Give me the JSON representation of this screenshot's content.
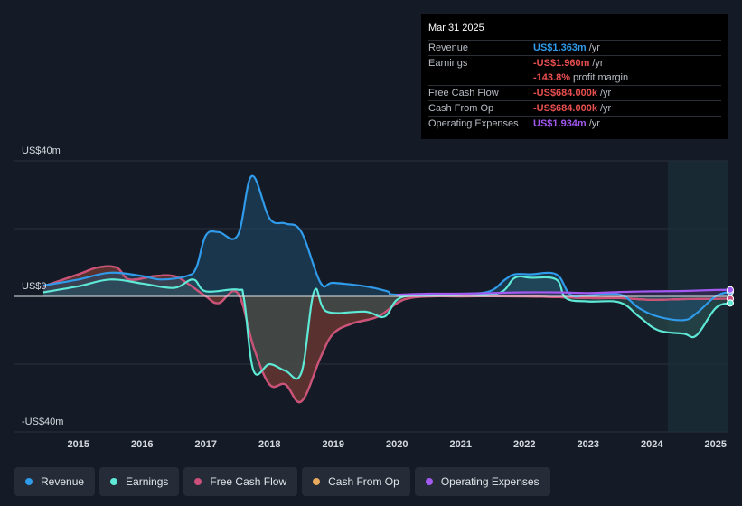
{
  "tooltip": {
    "date": "Mar 31 2025",
    "rows": [
      {
        "label": "Revenue",
        "value": "US$1.363m",
        "unit": "/yr",
        "color": "#2f9bea"
      },
      {
        "label": "Earnings",
        "value": "-US$1.960m",
        "unit": "/yr",
        "color": "#e84f4f"
      },
      {
        "label": "",
        "value": "-143.8%",
        "unit": "profit margin",
        "color": "#e84f4f"
      },
      {
        "label": "Free Cash Flow",
        "value": "-US$684.000k",
        "unit": "/yr",
        "color": "#e84f4f"
      },
      {
        "label": "Cash From Op",
        "value": "-US$684.000k",
        "unit": "/yr",
        "color": "#e84f4f"
      },
      {
        "label": "Operating Expenses",
        "value": "US$1.934m",
        "unit": "/yr",
        "color": "#a259f0"
      }
    ]
  },
  "legend": [
    {
      "label": "Revenue",
      "color": "#2f9bea"
    },
    {
      "label": "Earnings",
      "color": "#5ee8d6"
    },
    {
      "label": "Free Cash Flow",
      "color": "#cc4f7c"
    },
    {
      "label": "Cash From Op",
      "color": "#eaaa5e"
    },
    {
      "label": "Operating Expenses",
      "color": "#a259f0"
    }
  ],
  "chart_data": {
    "type": "area",
    "y_tick_labels": {
      "top": "US$40m",
      "zero": "US$0",
      "bottom": "-US$40m"
    },
    "ylim": [
      -40,
      40
    ],
    "x_ticks": [
      "2015",
      "2016",
      "2017",
      "2018",
      "2019",
      "2020",
      "2021",
      "2022",
      "2023",
      "2024",
      "2025"
    ],
    "xlim": [
      2014.45,
      2025.23
    ],
    "forecast_shade_start": 2024.25,
    "grid": true,
    "series": [
      {
        "name": "Revenue",
        "color": "#2f9bea",
        "fill": "#1f4c6e",
        "points": [
          [
            2014.45,
            3.2
          ],
          [
            2015.0,
            5.0
          ],
          [
            2015.5,
            7.0
          ],
          [
            2016.0,
            6.0
          ],
          [
            2016.3,
            5.0
          ],
          [
            2016.7,
            6.0
          ],
          [
            2016.85,
            8.5
          ],
          [
            2017.0,
            18.0
          ],
          [
            2017.2,
            19.0
          ],
          [
            2017.5,
            18.0
          ],
          [
            2017.72,
            35.5
          ],
          [
            2018.0,
            23.0
          ],
          [
            2018.25,
            21.5
          ],
          [
            2018.5,
            19.0
          ],
          [
            2018.8,
            4.0
          ],
          [
            2019.0,
            4.0
          ],
          [
            2019.5,
            3.0
          ],
          [
            2019.85,
            1.5
          ],
          [
            2020.0,
            0.5
          ],
          [
            2021.0,
            0.8
          ],
          [
            2021.45,
            1.5
          ],
          [
            2021.7,
            5.0
          ],
          [
            2021.85,
            6.5
          ],
          [
            2022.1,
            6.5
          ],
          [
            2022.5,
            6.5
          ],
          [
            2022.72,
            0.5
          ],
          [
            2023.0,
            0.3
          ],
          [
            2023.5,
            0.5
          ],
          [
            2023.8,
            -3.5
          ],
          [
            2024.1,
            -6.0
          ],
          [
            2024.5,
            -7.0
          ],
          [
            2024.7,
            -5.0
          ],
          [
            2025.0,
            0.0
          ],
          [
            2025.23,
            1.363
          ]
        ]
      },
      {
        "name": "Earnings",
        "color": "#5ee8d6",
        "fill": "#2e5553",
        "points": [
          [
            2014.45,
            1.2
          ],
          [
            2015.0,
            3.0
          ],
          [
            2015.5,
            5.0
          ],
          [
            2016.0,
            3.8
          ],
          [
            2016.5,
            2.5
          ],
          [
            2016.8,
            5.0
          ],
          [
            2017.0,
            1.5
          ],
          [
            2017.5,
            2.0
          ],
          [
            2017.6,
            -1.0
          ],
          [
            2017.75,
            -22.0
          ],
          [
            2018.0,
            -20.0
          ],
          [
            2018.25,
            -22.0
          ],
          [
            2018.5,
            -22.5
          ],
          [
            2018.7,
            1.5
          ],
          [
            2018.9,
            -4.5
          ],
          [
            2019.5,
            -4.5
          ],
          [
            2019.8,
            -6.0
          ],
          [
            2020.0,
            -1.0
          ],
          [
            2020.3,
            0.3
          ],
          [
            2021.0,
            0.5
          ],
          [
            2021.6,
            1.0
          ],
          [
            2021.85,
            5.5
          ],
          [
            2022.1,
            5.5
          ],
          [
            2022.5,
            5.0
          ],
          [
            2022.65,
            -0.5
          ],
          [
            2023.0,
            -1.5
          ],
          [
            2023.5,
            -1.8
          ],
          [
            2023.8,
            -6.0
          ],
          [
            2024.1,
            -10.0
          ],
          [
            2024.5,
            -11.0
          ],
          [
            2024.7,
            -11.5
          ],
          [
            2025.0,
            -3.5
          ],
          [
            2025.23,
            -1.96
          ]
        ]
      },
      {
        "name": "Free Cash Flow",
        "color": "#cc4f7c",
        "fill": "#6b2a33",
        "points": [
          [
            2014.45,
            3.0
          ],
          [
            2015.0,
            6.5
          ],
          [
            2015.3,
            8.5
          ],
          [
            2015.6,
            8.5
          ],
          [
            2015.8,
            5.0
          ],
          [
            2016.2,
            6.0
          ],
          [
            2016.5,
            6.0
          ],
          [
            2016.7,
            4.0
          ],
          [
            2017.0,
            0.0
          ],
          [
            2017.2,
            -2.0
          ],
          [
            2017.5,
            1.0
          ],
          [
            2017.75,
            -15.0
          ],
          [
            2018.0,
            -26.0
          ],
          [
            2018.25,
            -26.0
          ],
          [
            2018.5,
            -31.0
          ],
          [
            2018.8,
            -18.0
          ],
          [
            2019.0,
            -11.0
          ],
          [
            2019.3,
            -8.0
          ],
          [
            2019.7,
            -6.0
          ],
          [
            2020.0,
            -2.0
          ],
          [
            2020.2,
            -0.5
          ],
          [
            2020.5,
            0.0
          ],
          [
            2021.0,
            0.0
          ],
          [
            2022.0,
            0.0
          ],
          [
            2023.0,
            -0.5
          ],
          [
            2023.5,
            -0.5
          ],
          [
            2024.0,
            -1.0
          ],
          [
            2024.5,
            -0.8
          ],
          [
            2025.0,
            -0.7
          ],
          [
            2025.23,
            -0.684
          ]
        ]
      },
      {
        "name": "Cash From Op",
        "color": "#eaaa5e",
        "fill": "#6b5330",
        "points": [
          [
            2014.45,
            3.0
          ],
          [
            2015.0,
            6.5
          ],
          [
            2015.3,
            8.5
          ],
          [
            2015.6,
            8.5
          ],
          [
            2015.8,
            5.0
          ],
          [
            2016.2,
            6.0
          ],
          [
            2016.5,
            6.0
          ],
          [
            2016.7,
            4.0
          ],
          [
            2017.0,
            0.0
          ],
          [
            2017.2,
            -2.0
          ],
          [
            2017.5,
            1.0
          ],
          [
            2017.75,
            -15.0
          ],
          [
            2018.0,
            -26.0
          ],
          [
            2018.25,
            -26.0
          ],
          [
            2018.5,
            -31.0
          ],
          [
            2018.8,
            -18.0
          ],
          [
            2019.0,
            -11.0
          ],
          [
            2019.3,
            -8.0
          ],
          [
            2019.7,
            -6.0
          ],
          [
            2020.0,
            -2.0
          ],
          [
            2020.2,
            -0.5
          ],
          [
            2020.5,
            0.0
          ],
          [
            2021.0,
            0.0
          ],
          [
            2022.0,
            0.0
          ],
          [
            2023.0,
            -0.5
          ],
          [
            2023.5,
            -0.5
          ],
          [
            2024.0,
            -1.0
          ],
          [
            2024.5,
            -0.8
          ],
          [
            2025.0,
            -0.7
          ],
          [
            2025.23,
            -0.684
          ]
        ]
      },
      {
        "name": "Operating Expenses",
        "color": "#a259f0",
        "fill": "#3f2c63",
        "points": [
          [
            2020.0,
            0.5
          ],
          [
            2020.5,
            0.8
          ],
          [
            2021.0,
            0.8
          ],
          [
            2021.5,
            1.0
          ],
          [
            2022.0,
            1.2
          ],
          [
            2022.5,
            1.2
          ],
          [
            2023.0,
            1.0
          ],
          [
            2023.5,
            1.3
          ],
          [
            2024.0,
            1.5
          ],
          [
            2024.5,
            1.6
          ],
          [
            2025.0,
            1.9
          ],
          [
            2025.23,
            1.934
          ]
        ]
      }
    ]
  }
}
